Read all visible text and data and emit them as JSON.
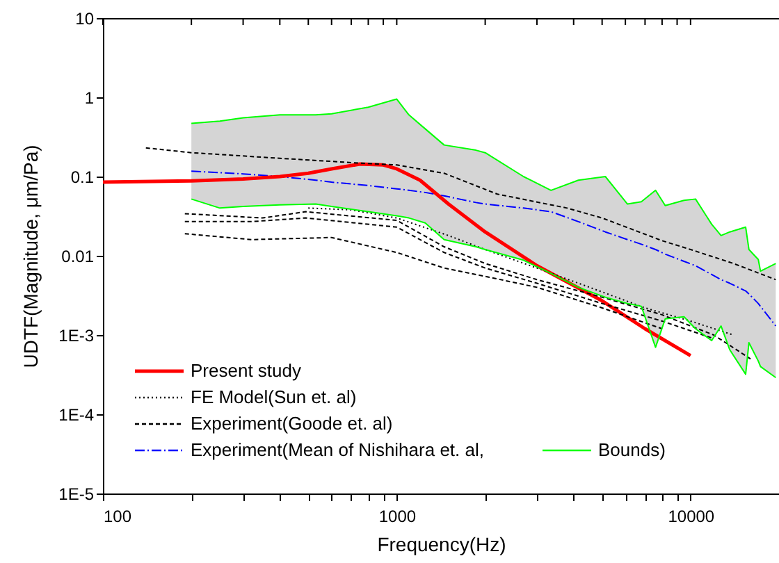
{
  "chart_data": {
    "type": "line",
    "xlabel": "Frequency(Hz)",
    "ylabel": "UDTF(Magnitude, μm/Pa)",
    "log": "xy",
    "legend": "bottom left",
    "grid": false,
    "xlim": [
      100,
      20000
    ],
    "xticks": [
      100,
      {
        "value": 200,
        "label": null
      },
      {
        "value": 300,
        "label": null
      },
      {
        "value": 400,
        "label": null
      },
      {
        "value": 500,
        "label": null
      },
      {
        "value": 600,
        "label": null
      },
      {
        "value": 700,
        "label": null
      },
      {
        "value": 800,
        "label": null
      },
      {
        "value": 900,
        "label": null
      },
      1000,
      {
        "value": 2000,
        "label": null
      },
      {
        "value": 3000,
        "label": null
      },
      {
        "value": 4000,
        "label": null
      },
      {
        "value": 5000,
        "label": null
      },
      {
        "value": 6000,
        "label": null
      },
      {
        "value": 7000,
        "label": null
      },
      {
        "value": 8000,
        "label": null
      },
      {
        "value": 9000,
        "label": null
      },
      10000
    ],
    "ylim": [
      1e-05,
      10
    ],
    "yticks": [
      {
        "value": 1e-05,
        "label": "1E-5"
      },
      {
        "value": 0.0001,
        "label": "1E-4"
      },
      {
        "value": 0.001,
        "label": "1E-3"
      },
      0.01,
      0.1,
      1,
      10
    ],
    "series": [
      {
        "name": "Present study",
        "color": "#ff0000",
        "line_style": "solid",
        "x": [
          100,
          200,
          300,
          400,
          500,
          600,
          750,
          900,
          1000,
          1200,
          1500,
          2000,
          3000,
          5000,
          7000,
          10000
        ],
        "values": [
          0.085,
          0.088,
          0.093,
          0.1,
          0.11,
          0.125,
          0.144,
          0.14,
          0.125,
          0.09,
          0.045,
          0.02,
          0.0075,
          0.0027,
          0.0012,
          0.00055
        ]
      },
      {
        "name": "FE Model(Sun et. al)",
        "color": "#000000",
        "line_style": "dotted",
        "x": [
          500,
          700,
          1000,
          1500,
          2000,
          3000,
          5000,
          7000,
          10000,
          14000
        ],
        "values": [
          0.04,
          0.038,
          0.03,
          0.018,
          0.012,
          0.007,
          0.0035,
          0.0022,
          0.0015,
          0.001
        ]
      },
      {
        "name": "Experiment(Goode et. al)",
        "color": "#000000",
        "line_style": "dashed",
        "x": [
          140,
          200,
          400,
          700,
          1000,
          1450,
          2200,
          3800,
          5000,
          8000,
          10000,
          14000,
          19500
        ],
        "values": [
          0.23,
          0.2,
          0.17,
          0.15,
          0.14,
          0.11,
          0.06,
          0.04,
          0.03,
          0.0155,
          0.012,
          0.008,
          0.005
        ]
      },
      {
        "color": "#000000",
        "line_style": "dashed",
        "x": [
          190,
          350,
          490,
          1000,
          1450,
          2000,
          3000,
          5000,
          8000,
          12000,
          16000
        ],
        "values": [
          0.034,
          0.03,
          0.036,
          0.028,
          0.013,
          0.008,
          0.005,
          0.003,
          0.0018,
          0.001,
          0.0005
        ]
      },
      {
        "color": "#000000",
        "line_style": "dashed",
        "x": [
          190,
          320,
          490,
          1000,
          1450,
          2000,
          3000,
          5000,
          8000,
          12000
        ],
        "values": [
          0.027,
          0.027,
          0.03,
          0.023,
          0.011,
          0.007,
          0.0045,
          0.0025,
          0.0015,
          0.0009
        ]
      },
      {
        "color": "#000000",
        "line_style": "dashed",
        "x": [
          190,
          320,
          600,
          1000,
          1450,
          2000,
          3000,
          5000,
          8000
        ],
        "values": [
          0.019,
          0.016,
          0.017,
          0.011,
          0.007,
          0.0055,
          0.004,
          0.0022,
          0.0012
        ]
      },
      {
        "name": "Experiment(Mean of Nishihara et. al,",
        "color": "#0000ff",
        "line_style": "dashdot",
        "x": [
          200,
          250,
          300,
          400,
          530,
          600,
          800,
          1000,
          1100,
          1250,
          1450,
          1860,
          2000,
          2700,
          3350,
          4150,
          5130,
          6100,
          6800,
          7600,
          8200,
          9500,
          10400,
          11800,
          12700,
          13600,
          15400,
          15800,
          17000,
          17300,
          19500
        ],
        "values": [
          0.117,
          0.112,
          0.108,
          0.1,
          0.09,
          0.085,
          0.077,
          0.07,
          0.067,
          0.063,
          0.057,
          0.047,
          0.045,
          0.04,
          0.036,
          0.027,
          0.02,
          0.016,
          0.014,
          0.012,
          0.0105,
          0.0085,
          0.0075,
          0.0058,
          0.005,
          0.0045,
          0.0036,
          0.0033,
          0.0025,
          0.0023,
          0.0013
        ],
        "upper": [
          0.47,
          0.5,
          0.55,
          0.6,
          0.6,
          0.62,
          0.75,
          0.95,
          0.6,
          0.4,
          0.25,
          0.215,
          0.2,
          0.1,
          0.067,
          0.09,
          0.1,
          0.045,
          0.048,
          0.067,
          0.043,
          0.05,
          0.052,
          0.025,
          0.018,
          0.02,
          0.023,
          0.012,
          0.009,
          0.0064,
          0.008
        ],
        "lower": [
          0.052,
          0.04,
          0.042,
          0.044,
          0.045,
          0.042,
          0.036,
          0.032,
          0.03,
          0.026,
          0.016,
          0.013,
          0.012,
          0.0088,
          0.006,
          0.004,
          0.003,
          0.0025,
          0.0023,
          0.0007,
          0.0016,
          0.0017,
          0.0012,
          0.00085,
          0.0013,
          0.00065,
          0.00032,
          0.0008,
          0.00047,
          0.0004,
          0.00029
        ]
      },
      {
        "name": "Bounds)",
        "color": "#00ff00",
        "line_style": "solid",
        "x": [
          200,
          250,
          300,
          400,
          530,
          600,
          800,
          1000,
          1100,
          1250,
          1450,
          1860,
          2000,
          2700,
          3350,
          4150,
          5130,
          6100,
          6800,
          7600,
          8200,
          9500,
          10400,
          11800,
          12700,
          13600,
          15400,
          15800,
          17000,
          17300,
          19500
        ],
        "values": [
          0.47,
          0.5,
          0.55,
          0.6,
          0.6,
          0.62,
          0.75,
          0.95,
          0.6,
          0.4,
          0.25,
          0.215,
          0.2,
          0.1,
          0.067,
          0.09,
          0.1,
          0.045,
          0.048,
          0.067,
          0.043,
          0.05,
          0.052,
          0.025,
          0.018,
          0.02,
          0.023,
          0.012,
          0.009,
          0.0064,
          0.008
        ]
      },
      {
        "color": "#00ff00",
        "line_style": "solid",
        "x": [
          200,
          250,
          300,
          400,
          530,
          600,
          800,
          1000,
          1100,
          1250,
          1450,
          1860,
          2000,
          2700,
          3350,
          4150,
          5130,
          6100,
          6800,
          7600,
          8200,
          9500,
          10400,
          11800,
          12700,
          13600,
          15400,
          15800,
          17000,
          17300,
          19500
        ],
        "values": [
          0.052,
          0.04,
          0.042,
          0.044,
          0.045,
          0.042,
          0.036,
          0.032,
          0.03,
          0.026,
          0.016,
          0.013,
          0.012,
          0.0088,
          0.006,
          0.004,
          0.003,
          0.0025,
          0.0023,
          0.0007,
          0.0016,
          0.0017,
          0.0012,
          0.00085,
          0.0013,
          0.00065,
          0.00032,
          0.0008,
          0.00047,
          0.0004,
          0.00029
        ]
      }
    ]
  }
}
